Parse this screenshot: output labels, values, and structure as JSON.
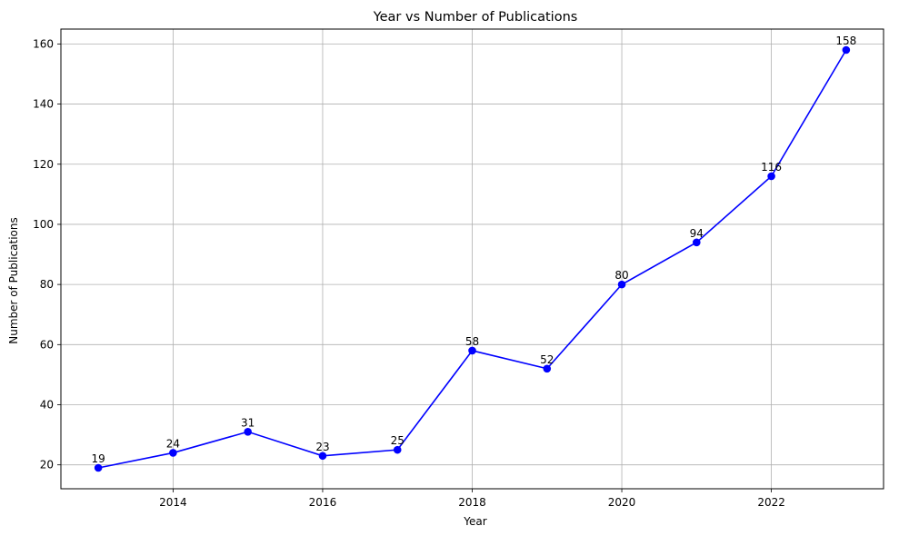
{
  "chart_data": {
    "type": "line",
    "title": "Year vs Number of Publications",
    "xlabel": "Year",
    "ylabel": "Number of Publications",
    "x": [
      2013,
      2014,
      2015,
      2016,
      2017,
      2018,
      2019,
      2020,
      2021,
      2022,
      2023
    ],
    "series": [
      {
        "values": [
          19,
          24,
          31,
          23,
          25,
          58,
          52,
          80,
          94,
          116,
          158
        ],
        "color": "#0000ff",
        "marker": "circle"
      }
    ],
    "xlim": [
      2012.5,
      2023.5
    ],
    "ylim": [
      12.05,
      164.95
    ],
    "xticks": [
      2014,
      2016,
      2018,
      2020,
      2022
    ],
    "yticks": [
      20,
      40,
      60,
      80,
      100,
      120,
      140,
      160
    ],
    "grid": true,
    "data_labels": true
  }
}
